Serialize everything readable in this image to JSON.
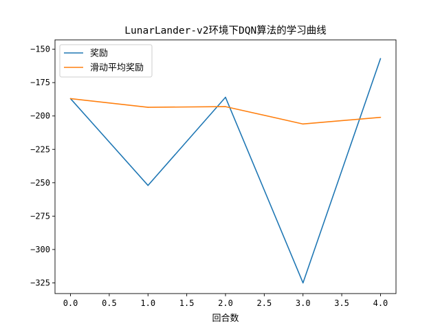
{
  "chart_data": {
    "type": "line",
    "title": "LunarLander-v2环境下DQN算法的学习曲线",
    "xlabel": "回合数",
    "ylabel": "",
    "xlim": [
      -0.2,
      4.2
    ],
    "ylim": [
      -333,
      -143
    ],
    "xticks": [
      0.0,
      0.5,
      1.0,
      1.5,
      2.0,
      2.5,
      3.0,
      3.5,
      4.0
    ],
    "xtick_labels": [
      "0.0",
      "0.5",
      "1.0",
      "1.5",
      "2.0",
      "2.5",
      "3.0",
      "3.5",
      "4.0"
    ],
    "yticks": [
      -150,
      -175,
      -200,
      -225,
      -250,
      -275,
      -300,
      -325
    ],
    "ytick_labels": [
      "−150",
      "−175",
      "−200",
      "−225",
      "−250",
      "−275",
      "−300",
      "−325"
    ],
    "x": [
      0,
      1,
      2,
      3,
      4
    ],
    "series": [
      {
        "name": "奖励",
        "color": "#1f77b4",
        "values": [
          -187,
          -252,
          -186,
          -325,
          -157
        ]
      },
      {
        "name": "滑动平均奖励",
        "color": "#ff7f0e",
        "values": [
          -187,
          -193.5,
          -193,
          -206,
          -201
        ]
      }
    ],
    "grid": false,
    "legend": "top-left"
  }
}
